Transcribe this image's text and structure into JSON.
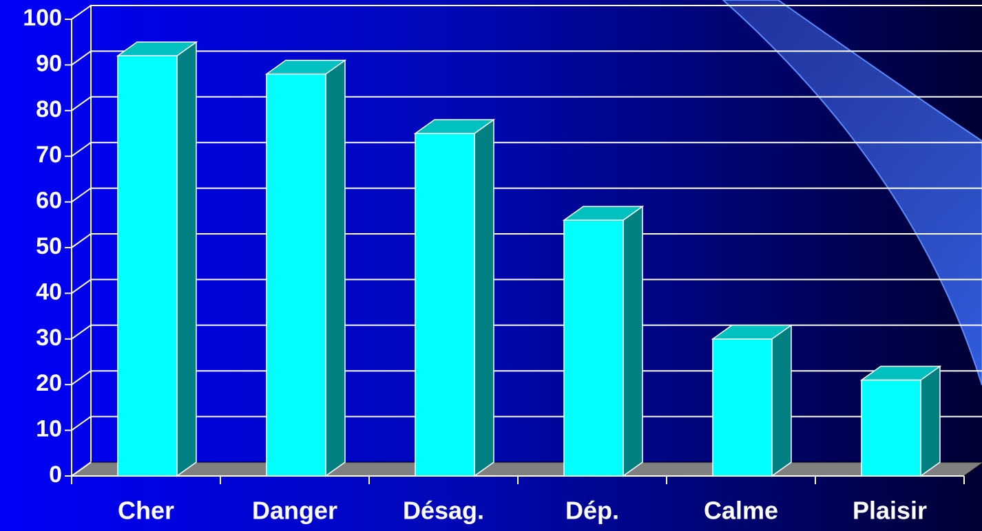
{
  "chart_data": {
    "type": "bar",
    "categories": [
      "Cher",
      "Danger",
      "Désag.",
      "Dép.",
      "Calme",
      "Plaisir"
    ],
    "values": [
      92,
      88,
      75,
      56,
      30,
      21
    ],
    "color": "#00ffff",
    "ylim": [
      0,
      100
    ],
    "yticks": [
      0,
      10,
      20,
      30,
      40,
      50,
      60,
      70,
      80,
      90,
      100
    ],
    "grid": true
  }
}
